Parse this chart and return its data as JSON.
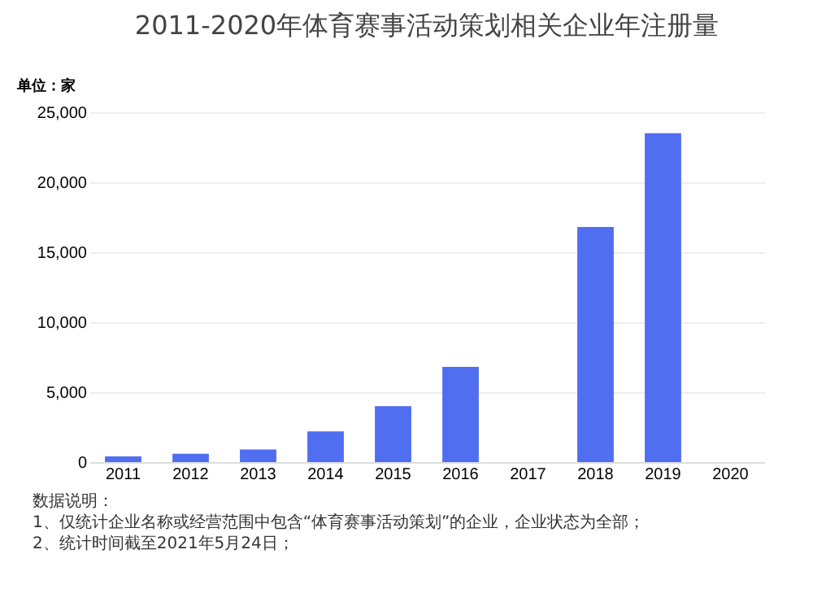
{
  "chart_data": {
    "type": "bar",
    "title": "2011-2020年体育赛事活动策划相关企业年注册量",
    "ylabel": "单位：家",
    "categories": [
      "2011",
      "2012",
      "2013",
      "2014",
      "2015",
      "2016",
      "2017",
      "2018",
      "2019",
      "2020"
    ],
    "values": [
      400,
      600,
      900,
      2200,
      4000,
      6800,
      null,
      16800,
      23500,
      null
    ],
    "color": "#4f6ef0",
    "ylim": [
      0,
      25000
    ],
    "yticks": [
      {
        "value": 0,
        "label": "0"
      },
      {
        "value": 5000,
        "label": "5,000"
      },
      {
        "value": 10000,
        "label": "10,000"
      },
      {
        "value": 15000,
        "label": "15,000"
      },
      {
        "value": 20000,
        "label": "20,000"
      },
      {
        "value": 25000,
        "label": "25,000"
      }
    ],
    "grid": "y",
    "annotations": [
      "数据说明：",
      "1、仅统计企业名称或经营范围中包含“体育赛事活动策划”的企业，企业状态为全部；",
      "2、统计时间截至2021年5月24日；"
    ]
  }
}
